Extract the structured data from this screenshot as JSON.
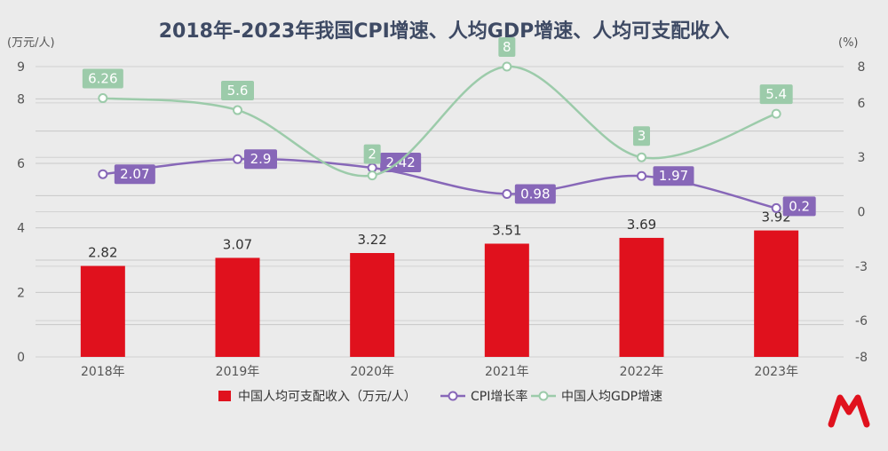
{
  "chart_data": {
    "type": "bar+line",
    "title": "2018年-2023年我国CPI增速、人均GDP增速、人均可支配收入",
    "left_unit": "(万元/人)",
    "right_unit": "(%)",
    "categories": [
      "2018年",
      "2019年",
      "2020年",
      "2021年",
      "2022年",
      "2023年"
    ],
    "left_axis": {
      "range": [
        0,
        9
      ],
      "ticks": [
        0,
        2,
        4,
        6,
        8,
        9
      ]
    },
    "right_axis": {
      "range": [
        -8,
        8
      ],
      "ticks": [
        -8,
        -6,
        -3,
        0,
        3,
        6,
        8
      ]
    },
    "series": [
      {
        "name": "中国人均可支配收入（万元/人）",
        "type": "bar",
        "axis": "left",
        "color": "#e0111d",
        "values": [
          2.82,
          3.07,
          3.22,
          3.51,
          3.69,
          3.92
        ]
      },
      {
        "name": "CPI增长率",
        "type": "line",
        "axis": "right",
        "color": "#8767b8",
        "values": [
          2.07,
          2.9,
          2.42,
          0.98,
          1.97,
          0.2
        ]
      },
      {
        "name": "中国人均GDP增速",
        "type": "line",
        "axis": "right",
        "color": "#9ccbaa",
        "values": [
          6.26,
          5.6,
          2,
          8,
          3,
          5.4
        ]
      }
    ],
    "legend_position": "bottom-center"
  }
}
